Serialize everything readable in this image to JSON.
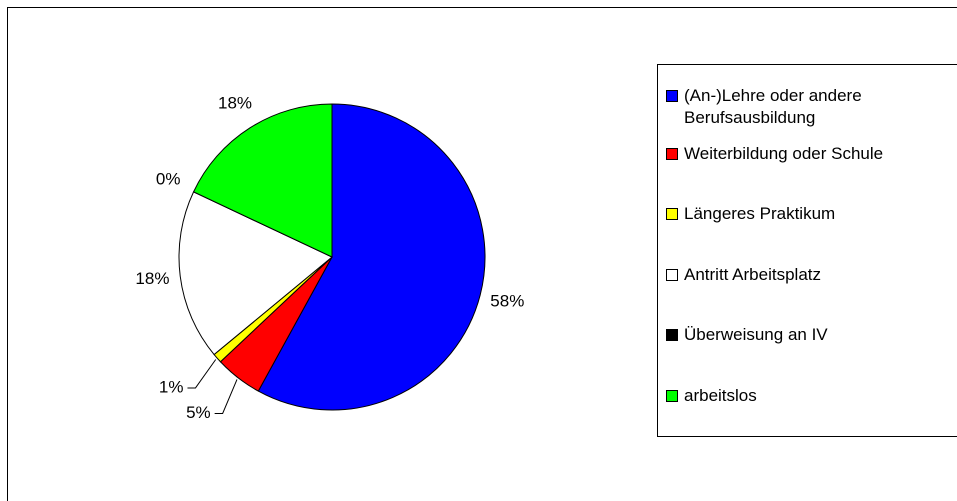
{
  "chart_data": {
    "type": "pie",
    "categories": [
      "(An-)Lehre oder andere Berufsausbildung",
      "Weiterbildung oder Schule",
      "Längeres Praktikum",
      "Antritt Arbeitsplatz",
      "Überweisung an IV",
      "arbeitslos"
    ],
    "values": [
      58,
      5,
      1,
      18,
      0,
      18
    ],
    "value_labels": [
      "58%",
      "5%",
      "1%",
      "18%",
      "0%",
      "18%"
    ],
    "colors": [
      "#0000ff",
      "#ff0000",
      "#ffff00",
      "#ffffff",
      "#000000",
      "#00ff00"
    ],
    "legend": "right"
  }
}
